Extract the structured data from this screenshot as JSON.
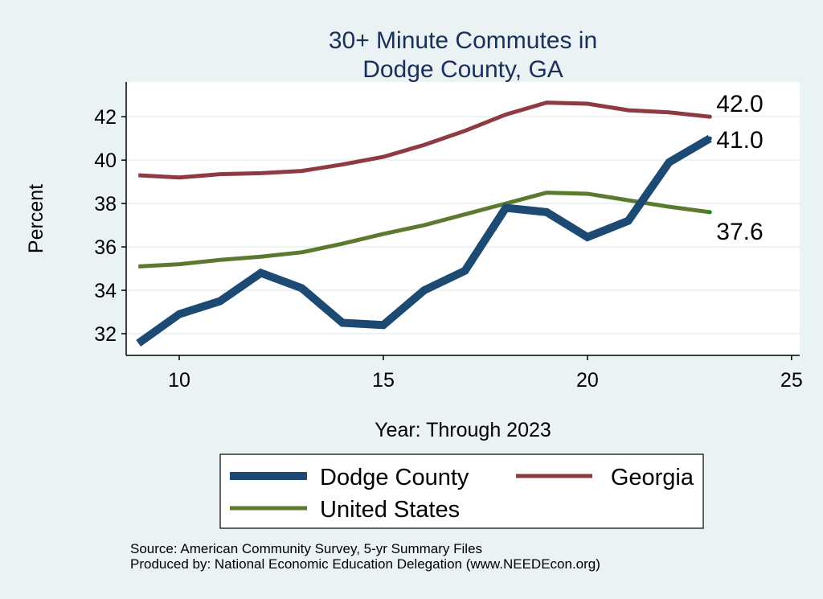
{
  "chart_data": {
    "type": "line",
    "title": [
      "30+ Minute Commutes in",
      "Dodge County, GA"
    ],
    "xlabel": "Year: Through 2023",
    "ylabel": "Percent",
    "xlim": [
      8.7,
      25.2
    ],
    "ylim": [
      31.0,
      43.6
    ],
    "xticks": [
      10,
      15,
      20,
      25
    ],
    "yticks": [
      32,
      34,
      36,
      38,
      40,
      42
    ],
    "grid": true,
    "x": [
      9,
      10,
      11,
      12,
      13,
      14,
      15,
      16,
      17,
      18,
      19,
      20,
      21,
      22,
      23
    ],
    "series": [
      {
        "name": "Dodge County",
        "color": "#1c4a72",
        "values": [
          31.56,
          32.9,
          33.5,
          34.8,
          34.1,
          32.5,
          32.4,
          34.0,
          34.9,
          37.8,
          37.6,
          36.45,
          37.2,
          39.9,
          41.0
        ],
        "end_label": "41.0"
      },
      {
        "name": "Georgia",
        "color": "#8e3a42",
        "values": [
          39.3,
          39.2,
          39.35,
          39.4,
          39.5,
          39.8,
          40.15,
          40.7,
          41.35,
          42.1,
          42.65,
          42.6,
          42.3,
          42.2,
          42.0
        ],
        "end_label": "42.0"
      },
      {
        "name": "United States",
        "color": "#5b7a2f",
        "values": [
          35.1,
          35.2,
          35.4,
          35.55,
          35.75,
          36.15,
          36.6,
          37.0,
          37.5,
          38.0,
          38.5,
          38.45,
          38.15,
          37.85,
          37.6
        ],
        "end_label": "37.6"
      }
    ],
    "legend": {
      "placement": "bottom",
      "items": [
        "Dodge County",
        "Georgia",
        "United States"
      ]
    },
    "notes": [
      "Source: American Community Survey, 5-yr Summary Files",
      "Produced by: National Economic Education Delegation (www.NEEDEcon.org)"
    ]
  }
}
